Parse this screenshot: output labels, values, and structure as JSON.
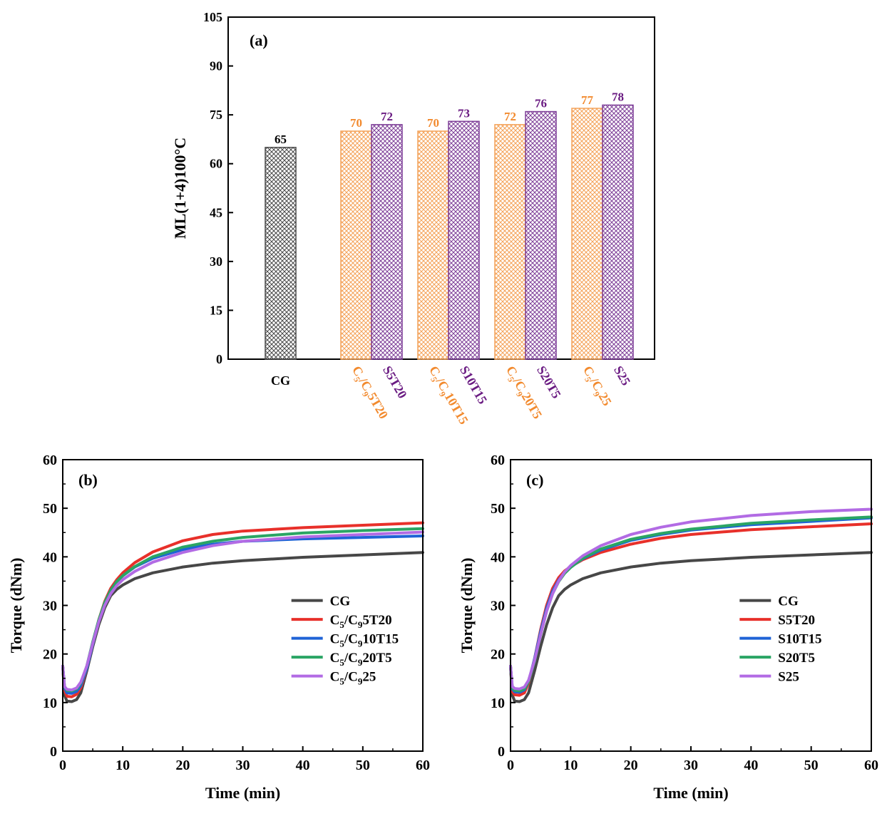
{
  "colors": {
    "axis": "#000000",
    "cg": "#4a4a4a",
    "c5c9": "#f4a259",
    "c5c9_label": "#f28a2e",
    "s": "#7e3f98",
    "s_label": "#6a1b82",
    "red": "#e8302a",
    "blue": "#1f63d6",
    "green": "#2aa564",
    "violet": "#b26be4",
    "grey": "#474747"
  },
  "chart_data": [
    {
      "id": "a",
      "type": "bar",
      "panel_label": "(a)",
      "ylabel": "ML(1+4)100°C",
      "ylim": [
        0,
        105
      ],
      "yticks": [
        0,
        15,
        30,
        45,
        60,
        75,
        90,
        105
      ],
      "ytick_labels": [
        "0",
        "15",
        "30",
        "45",
        "60",
        "75",
        "90",
        "105"
      ],
      "bars": [
        {
          "name": "CG",
          "value": 65,
          "value_label": "65",
          "color_key": "cg",
          "label_color_key": "axis"
        },
        {
          "name": "C5/C95T20",
          "value": 70,
          "value_label": "70",
          "color_key": "c5c9",
          "label_color_key": "c5c9_label"
        },
        {
          "name": "S5T20",
          "value": 72,
          "value_label": "72",
          "color_key": "s",
          "label_color_key": "s_label"
        },
        {
          "name": "C5/C910T15",
          "value": 70,
          "value_label": "70",
          "color_key": "c5c9",
          "label_color_key": "c5c9_label"
        },
        {
          "name": "S10T15",
          "value": 73,
          "value_label": "73",
          "color_key": "s",
          "label_color_key": "s_label"
        },
        {
          "name": "C5/C920T5",
          "value": 72,
          "value_label": "72",
          "color_key": "c5c9",
          "label_color_key": "c5c9_label"
        },
        {
          "name": "S20T5",
          "value": 76,
          "value_label": "76",
          "color_key": "s",
          "label_color_key": "s_label"
        },
        {
          "name": "C5/C925",
          "value": 77,
          "value_label": "77",
          "color_key": "c5c9",
          "label_color_key": "c5c9_label"
        },
        {
          "name": "S25",
          "value": 78,
          "value_label": "78",
          "color_key": "s",
          "label_color_key": "s_label"
        }
      ],
      "xtick_labels": [
        {
          "text": "CG",
          "color_key": "axis",
          "rotated": false
        },
        {
          "prefix": "C",
          "sub1": "5",
          "mid": "/C",
          "sub2": "9",
          "suffix": "5T20",
          "color_key": "c5c9_label",
          "rotated": true
        },
        {
          "text": "S5T20",
          "color_key": "s_label",
          "rotated": true
        },
        {
          "prefix": "C",
          "sub1": "5",
          "mid": "/C",
          "sub2": "9",
          "suffix": "10T15",
          "color_key": "c5c9_label",
          "rotated": true
        },
        {
          "text": "S10T15",
          "color_key": "s_label",
          "rotated": true
        },
        {
          "prefix": "C",
          "sub1": "5",
          "mid": "/C",
          "sub2": "9",
          "suffix": "20T5",
          "color_key": "c5c9_label",
          "rotated": true
        },
        {
          "text": "S20T5",
          "color_key": "s_label",
          "rotated": true
        },
        {
          "prefix": "C",
          "sub1": "5",
          "mid": "/C",
          "sub2": "9",
          "suffix": "25",
          "color_key": "c5c9_label",
          "rotated": true
        },
        {
          "text": "S25",
          "color_key": "s_label",
          "rotated": true
        }
      ]
    },
    {
      "id": "b",
      "type": "line",
      "panel_label": "(b)",
      "xlabel": "Time (min)",
      "ylabel": "Torque (dNm)",
      "xlim": [
        0,
        60
      ],
      "ylim": [
        0,
        60
      ],
      "xticks": [
        0,
        10,
        20,
        30,
        40,
        50,
        60
      ],
      "yticks": [
        0,
        10,
        20,
        30,
        40,
        50,
        60
      ],
      "legend_position": "center-right",
      "series": [
        {
          "name": "CG",
          "color_key": "grey",
          "points": [
            [
              0,
              17.5
            ],
            [
              0.3,
              11.5
            ],
            [
              0.7,
              10.3
            ],
            [
              1.5,
              10.2
            ],
            [
              2.3,
              10.6
            ],
            [
              3,
              12
            ],
            [
              4,
              16.5
            ],
            [
              5,
              21.5
            ],
            [
              6,
              26
            ],
            [
              7,
              29.5
            ],
            [
              8,
              32
            ],
            [
              9,
              33.3
            ],
            [
              10,
              34.2
            ],
            [
              12,
              35.5
            ],
            [
              15,
              36.7
            ],
            [
              20,
              37.9
            ],
            [
              25,
              38.7
            ],
            [
              30,
              39.2
            ],
            [
              40,
              39.9
            ],
            [
              50,
              40.4
            ],
            [
              60,
              40.9
            ]
          ]
        },
        {
          "name": "C5/C95T20",
          "color_key": "red",
          "points": [
            [
              0,
              17.5
            ],
            [
              0.3,
              12.5
            ],
            [
              0.7,
              11.3
            ],
            [
              1.5,
              11.2
            ],
            [
              2.3,
              11.7
            ],
            [
              3,
              13
            ],
            [
              4,
              17
            ],
            [
              5,
              22
            ],
            [
              6,
              27
            ],
            [
              7,
              30.8
            ],
            [
              8,
              33.5
            ],
            [
              9,
              35.3
            ],
            [
              10,
              36.7
            ],
            [
              12,
              38.8
            ],
            [
              15,
              41
            ],
            [
              20,
              43.3
            ],
            [
              25,
              44.6
            ],
            [
              30,
              45.3
            ],
            [
              40,
              46
            ],
            [
              50,
              46.5
            ],
            [
              60,
              47
            ]
          ]
        },
        {
          "name": "C5/C910T15",
          "color_key": "blue",
          "points": [
            [
              0,
              17.5
            ],
            [
              0.3,
              13
            ],
            [
              0.7,
              12
            ],
            [
              1.5,
              11.9
            ],
            [
              2.3,
              12.3
            ],
            [
              3,
              13.5
            ],
            [
              4,
              17
            ],
            [
              5,
              22
            ],
            [
              6,
              26.8
            ],
            [
              7,
              30.5
            ],
            [
              8,
              33.1
            ],
            [
              9,
              34.9
            ],
            [
              10,
              36.1
            ],
            [
              12,
              37.9
            ],
            [
              15,
              39.7
            ],
            [
              20,
              41.5
            ],
            [
              25,
              42.6
            ],
            [
              30,
              43.2
            ],
            [
              40,
              43.7
            ],
            [
              50,
              44
            ],
            [
              60,
              44.3
            ]
          ]
        },
        {
          "name": "C5/C920T5",
          "color_key": "green",
          "points": [
            [
              0,
              17.5
            ],
            [
              0.3,
              13.3
            ],
            [
              0.7,
              12.5
            ],
            [
              1.5,
              12.4
            ],
            [
              2.3,
              12.8
            ],
            [
              3,
              14
            ],
            [
              4,
              17.5
            ],
            [
              5,
              22.5
            ],
            [
              6,
              27
            ],
            [
              7,
              30.6
            ],
            [
              8,
              33.1
            ],
            [
              9,
              34.9
            ],
            [
              10,
              36.1
            ],
            [
              12,
              38
            ],
            [
              15,
              40
            ],
            [
              20,
              42
            ],
            [
              25,
              43.2
            ],
            [
              30,
              44
            ],
            [
              40,
              44.9
            ],
            [
              50,
              45.4
            ],
            [
              60,
              45.8
            ]
          ]
        },
        {
          "name": "C5/C925",
          "color_key": "violet",
          "points": [
            [
              0,
              17.5
            ],
            [
              0.3,
              13.3
            ],
            [
              0.7,
              12.7
            ],
            [
              1.5,
              12.6
            ],
            [
              2.3,
              13
            ],
            [
              3,
              14.2
            ],
            [
              4,
              17.5
            ],
            [
              5,
              22.2
            ],
            [
              6,
              26.6
            ],
            [
              7,
              30
            ],
            [
              8,
              32.4
            ],
            [
              9,
              34.1
            ],
            [
              10,
              35.3
            ],
            [
              12,
              37
            ],
            [
              15,
              38.9
            ],
            [
              20,
              40.9
            ],
            [
              25,
              42.3
            ],
            [
              30,
              43.2
            ],
            [
              40,
              44.1
            ],
            [
              50,
              44.6
            ],
            [
              60,
              45.1
            ]
          ]
        }
      ]
    },
    {
      "id": "c",
      "type": "line",
      "panel_label": "(c)",
      "xlabel": "Time (min)",
      "ylabel": "Torque (dNm)",
      "xlim": [
        0,
        60
      ],
      "ylim": [
        0,
        60
      ],
      "xticks": [
        0,
        10,
        20,
        30,
        40,
        50,
        60
      ],
      "yticks": [
        0,
        10,
        20,
        30,
        40,
        50,
        60
      ],
      "legend_position": "center-right",
      "series": [
        {
          "name": "CG",
          "color_key": "grey",
          "points": [
            [
              0,
              17.5
            ],
            [
              0.3,
              11.5
            ],
            [
              0.7,
              10.3
            ],
            [
              1.5,
              10.2
            ],
            [
              2.3,
              10.6
            ],
            [
              3,
              12
            ],
            [
              4,
              16.5
            ],
            [
              5,
              21.5
            ],
            [
              6,
              26
            ],
            [
              7,
              29.5
            ],
            [
              8,
              32
            ],
            [
              9,
              33.3
            ],
            [
              10,
              34.2
            ],
            [
              12,
              35.5
            ],
            [
              15,
              36.7
            ],
            [
              20,
              37.9
            ],
            [
              25,
              38.7
            ],
            [
              30,
              39.2
            ],
            [
              40,
              39.9
            ],
            [
              50,
              40.4
            ],
            [
              60,
              40.9
            ]
          ]
        },
        {
          "name": "S5T20",
          "color_key": "red",
          "points": [
            [
              0,
              17.5
            ],
            [
              0.3,
              12.3
            ],
            [
              0.7,
              11.6
            ],
            [
              1.5,
              11.5
            ],
            [
              2.3,
              12
            ],
            [
              3,
              14
            ],
            [
              4,
              19
            ],
            [
              5,
              25
            ],
            [
              6,
              30
            ],
            [
              7,
              33.5
            ],
            [
              8,
              35.7
            ],
            [
              9,
              37.1
            ],
            [
              10,
              38
            ],
            [
              12,
              39.4
            ],
            [
              15,
              40.9
            ],
            [
              20,
              42.6
            ],
            [
              25,
              43.8
            ],
            [
              30,
              44.6
            ],
            [
              40,
              45.6
            ],
            [
              50,
              46.2
            ],
            [
              60,
              46.8
            ]
          ]
        },
        {
          "name": "S10T15",
          "color_key": "blue",
          "points": [
            [
              0,
              17.5
            ],
            [
              0.3,
              12.8
            ],
            [
              0.7,
              12.2
            ],
            [
              1.5,
              12.1
            ],
            [
              2.3,
              12.6
            ],
            [
              3,
              14.3
            ],
            [
              4,
              19
            ],
            [
              5,
              24.6
            ],
            [
              6,
              29.4
            ],
            [
              7,
              32.9
            ],
            [
              8,
              35.2
            ],
            [
              9,
              36.8
            ],
            [
              10,
              37.9
            ],
            [
              12,
              39.6
            ],
            [
              15,
              41.4
            ],
            [
              20,
              43.4
            ],
            [
              25,
              44.6
            ],
            [
              30,
              45.5
            ],
            [
              40,
              46.6
            ],
            [
              50,
              47.3
            ],
            [
              60,
              48
            ]
          ]
        },
        {
          "name": "S20T5",
          "color_key": "green",
          "points": [
            [
              0,
              17.5
            ],
            [
              0.3,
              13
            ],
            [
              0.7,
              12.5
            ],
            [
              1.5,
              12.4
            ],
            [
              2.3,
              12.8
            ],
            [
              3,
              14.3
            ],
            [
              4,
              18.5
            ],
            [
              5,
              24
            ],
            [
              6,
              28.8
            ],
            [
              7,
              32.4
            ],
            [
              8,
              34.9
            ],
            [
              9,
              36.6
            ],
            [
              10,
              37.8
            ],
            [
              12,
              39.7
            ],
            [
              15,
              41.6
            ],
            [
              20,
              43.6
            ],
            [
              25,
              44.8
            ],
            [
              30,
              45.7
            ],
            [
              40,
              46.9
            ],
            [
              50,
              47.6
            ],
            [
              60,
              48.2
            ]
          ]
        },
        {
          "name": "S25",
          "color_key": "violet",
          "points": [
            [
              0,
              17.5
            ],
            [
              0.3,
              13.3
            ],
            [
              0.7,
              12.9
            ],
            [
              1.5,
              12.8
            ],
            [
              2.3,
              13.2
            ],
            [
              3,
              14.6
            ],
            [
              4,
              18.7
            ],
            [
              5,
              24
            ],
            [
              6,
              28.8
            ],
            [
              7,
              32.4
            ],
            [
              8,
              35
            ],
            [
              9,
              36.9
            ],
            [
              10,
              38.2
            ],
            [
              12,
              40.2
            ],
            [
              15,
              42.3
            ],
            [
              20,
              44.6
            ],
            [
              25,
              46.1
            ],
            [
              30,
              47.2
            ],
            [
              40,
              48.5
            ],
            [
              50,
              49.3
            ],
            [
              60,
              49.8
            ]
          ]
        }
      ]
    }
  ]
}
